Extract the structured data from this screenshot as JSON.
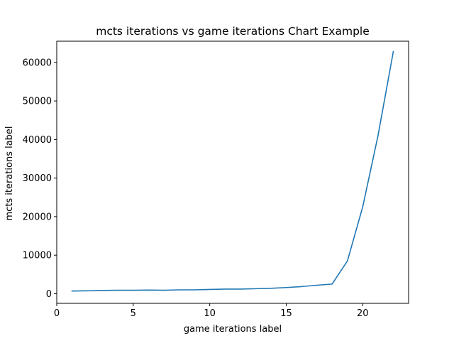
{
  "chart_data": {
    "type": "line",
    "title": "mcts iterations vs game iterations Chart Example",
    "xlabel": "game iterations label",
    "ylabel": "mcts iterations label",
    "xlim": [
      0,
      23
    ],
    "ylim": [
      -2500,
      65500
    ],
    "xticks": [
      0,
      5,
      10,
      15,
      20
    ],
    "yticks": [
      0,
      10000,
      20000,
      30000,
      40000,
      50000,
      60000
    ],
    "grid": false,
    "series_color": "#1f77b4",
    "x": [
      1,
      2,
      3,
      4,
      5,
      6,
      7,
      8,
      9,
      10,
      11,
      12,
      13,
      14,
      15,
      16,
      17,
      18,
      19,
      20,
      21,
      22
    ],
    "y": [
      700,
      750,
      850,
      900,
      900,
      950,
      900,
      1000,
      1000,
      1100,
      1200,
      1200,
      1300,
      1400,
      1600,
      1850,
      2200,
      2500,
      8500,
      22500,
      41000,
      62800
    ]
  }
}
